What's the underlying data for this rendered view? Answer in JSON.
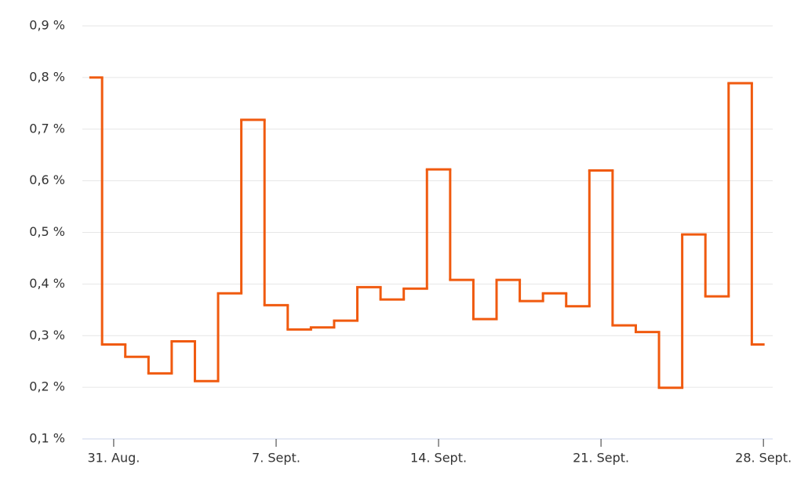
{
  "chart_data": {
    "type": "step",
    "x": [
      0,
      1,
      2,
      3,
      4,
      5,
      6,
      7,
      8,
      9,
      10,
      11,
      12,
      13,
      14,
      15,
      16,
      17,
      18,
      19,
      20,
      21,
      22,
      23,
      24,
      25,
      26,
      27,
      28,
      29
    ],
    "series": [
      {
        "color": "#f05a0f",
        "values": [
          0.8,
          0.283,
          0.259,
          0.227,
          0.289,
          0.212,
          0.382,
          0.718,
          0.359,
          0.312,
          0.316,
          0.329,
          0.394,
          0.37,
          0.391,
          0.622,
          0.408,
          0.332,
          0.408,
          0.367,
          0.382,
          0.357,
          0.62,
          0.32,
          0.307,
          0.199,
          0.496,
          0.376,
          0.789,
          0.283
        ]
      }
    ],
    "xlim": [
      -0.35,
      29.4
    ],
    "xticks": [
      {
        "value": 1,
        "label": "31. Aug."
      },
      {
        "value": 8,
        "label": "7. Sept."
      },
      {
        "value": 15,
        "label": "14. Sept."
      },
      {
        "value": 22,
        "label": "21. Sept."
      },
      {
        "value": 29,
        "label": "28. Sept."
      }
    ],
    "ylim": [
      0.1,
      0.9
    ],
    "yticks": [
      {
        "value": 0.1,
        "label": "0,1 %"
      },
      {
        "value": 0.2,
        "label": "0,2 %"
      },
      {
        "value": 0.3,
        "label": "0,3 %"
      },
      {
        "value": 0.4,
        "label": "0,4 %"
      },
      {
        "value": 0.5,
        "label": "0,5 %"
      },
      {
        "value": 0.6,
        "label": "0,6 %"
      },
      {
        "value": 0.7,
        "label": "0,7 %"
      },
      {
        "value": 0.8,
        "label": "0,8 %"
      },
      {
        "value": 0.9,
        "label": "0,9 %"
      }
    ],
    "grid": true
  }
}
